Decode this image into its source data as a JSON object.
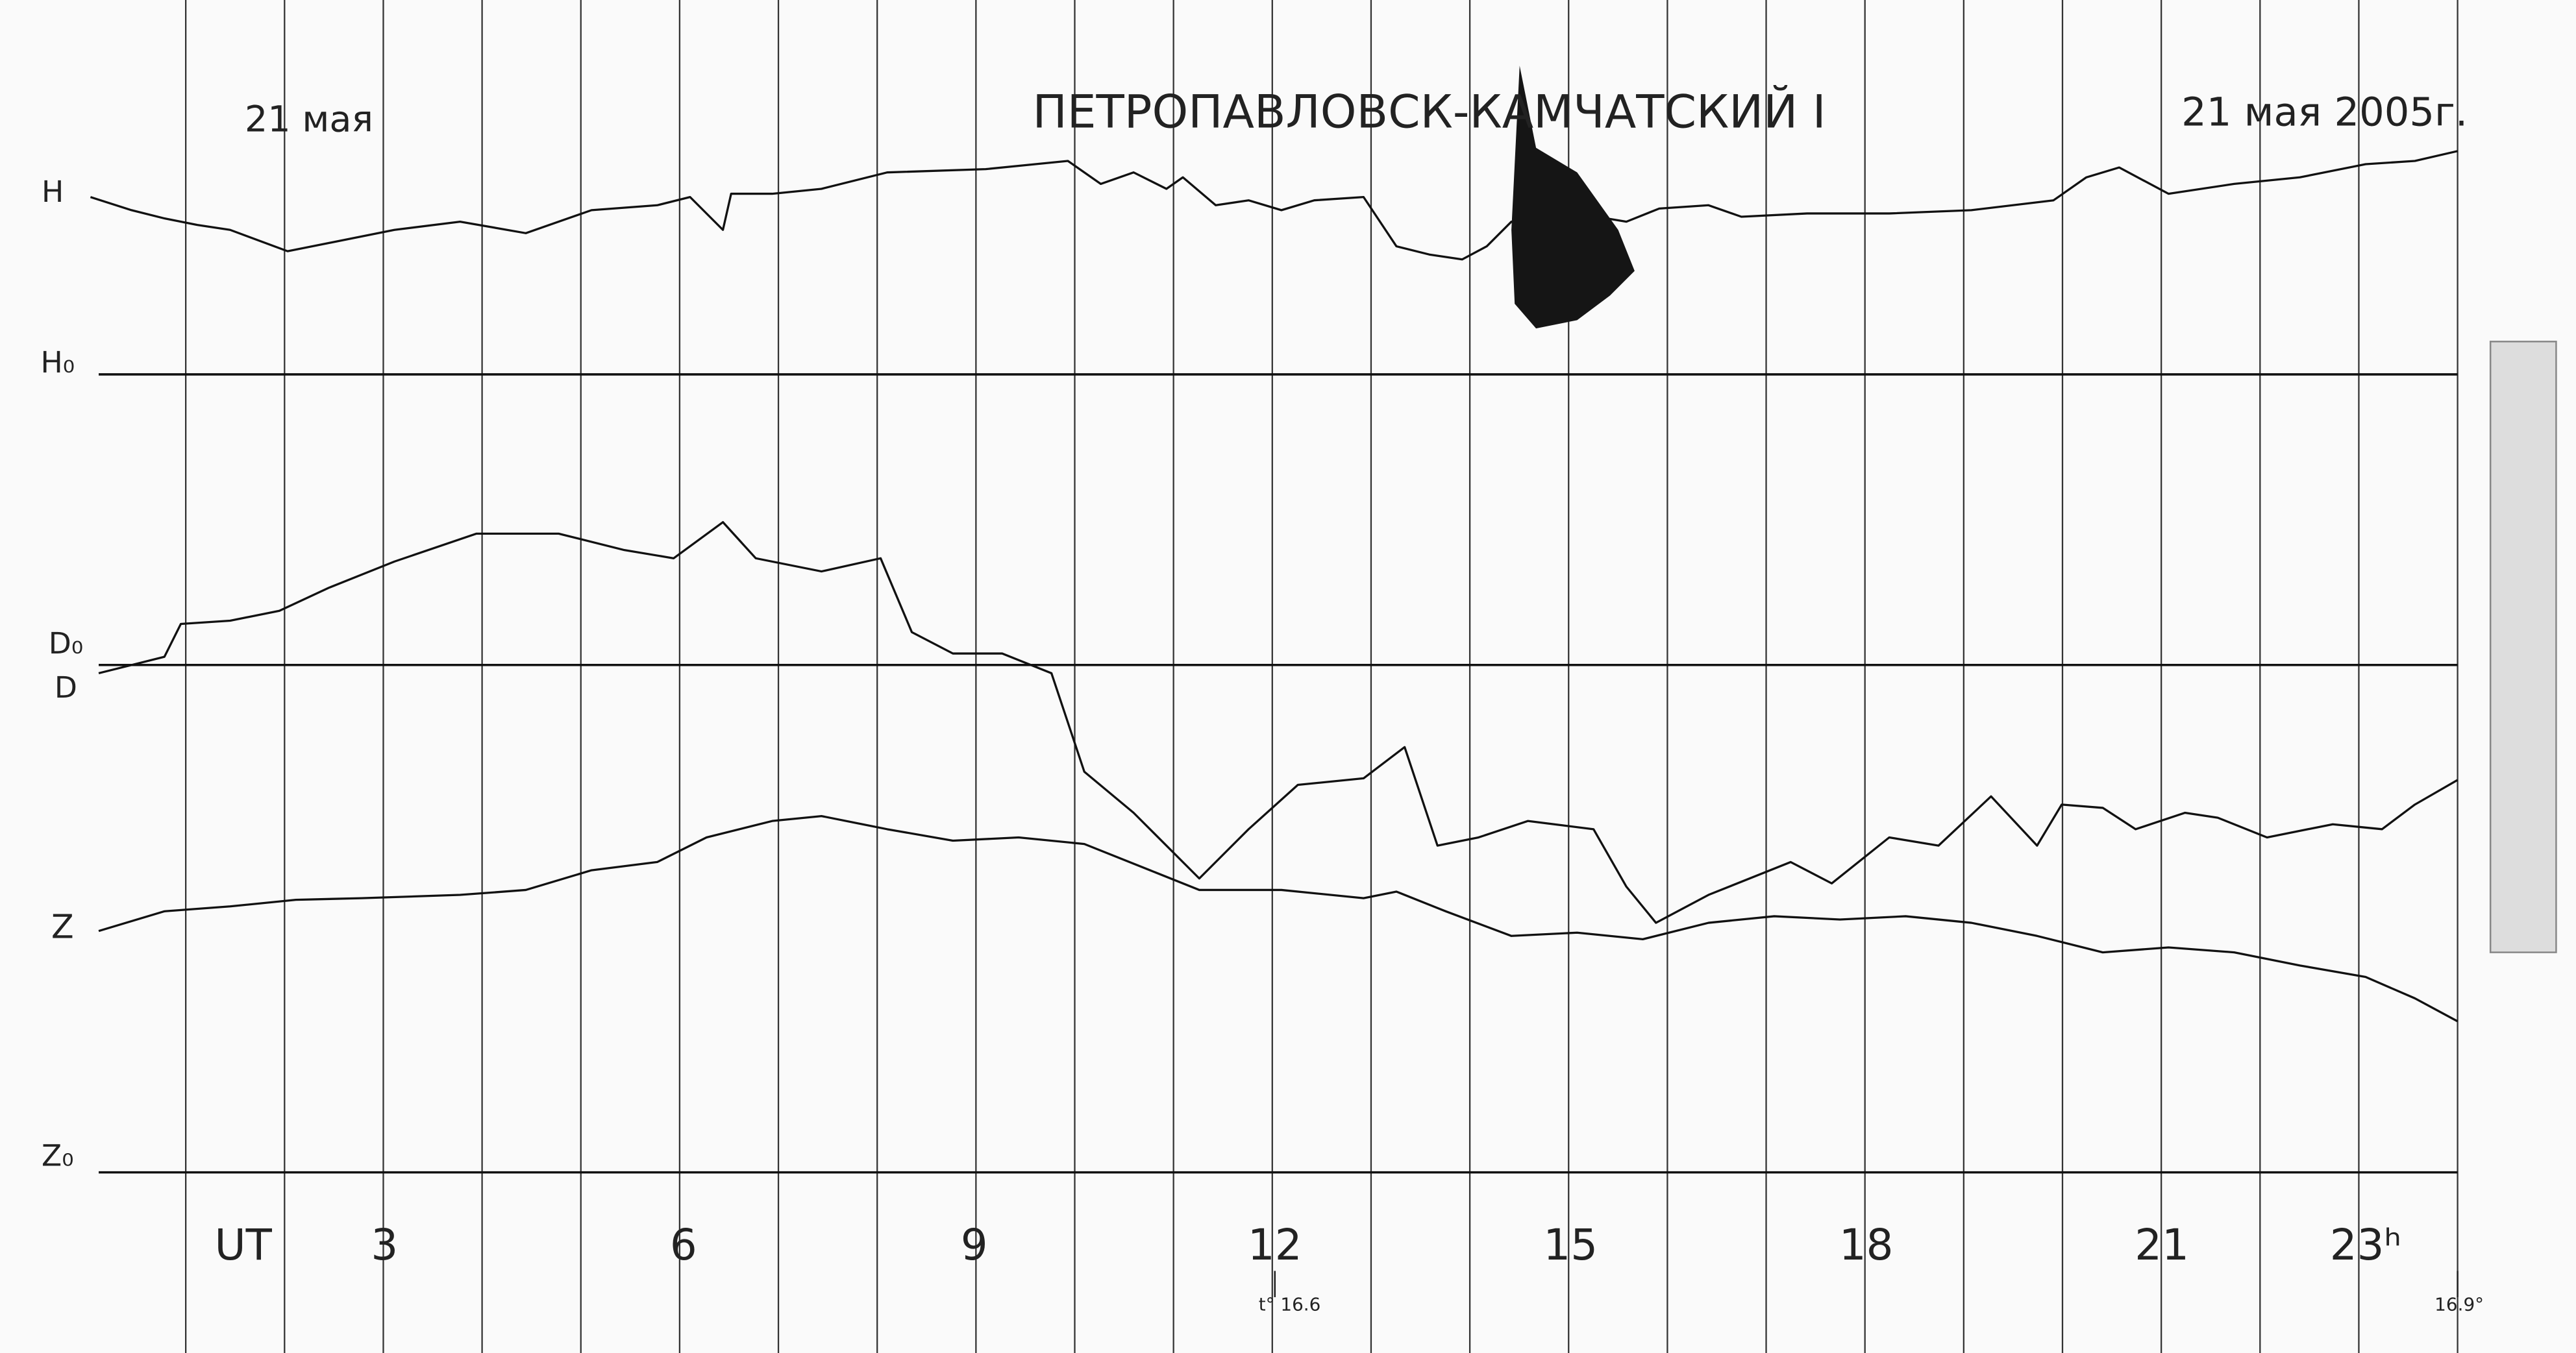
{
  "header": {
    "left_date": "21 мая",
    "title": "ПЕТРОПАВЛОВСК-КАМЧАТСКИЙ I",
    "right_date": "21 мая 2005г."
  },
  "trace_labels": [
    "H",
    "H₀",
    "D₀",
    "D",
    "Z",
    "Z₀"
  ],
  "time_axis": {
    "labels": [
      "UT",
      "3",
      "6",
      "9",
      "12",
      "15",
      "18",
      "21",
      "23ʰ"
    ]
  },
  "temperatures": [
    "t° 16.6",
    "16.9°"
  ]
}
